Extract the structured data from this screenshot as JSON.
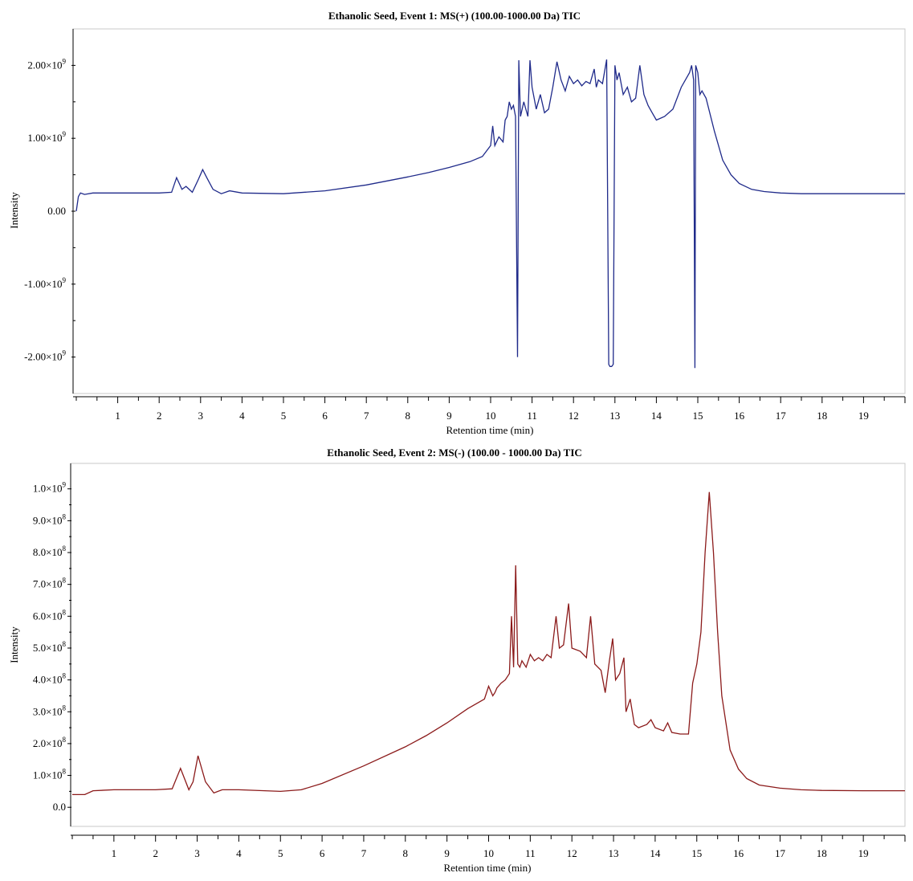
{
  "chart_data": [
    {
      "type": "line",
      "title": "Ethanolic Seed, Event 1: MS(+) (100.00-1000.00 Da) TIC",
      "xlabel": "Retention time (min)",
      "ylabel": "Intensity",
      "xlim": [
        0,
        20
      ],
      "ylim": [
        -2500000000.0,
        2500000000.0
      ],
      "x_ticks": [
        "1",
        "2",
        "3",
        "4",
        "5",
        "6",
        "7",
        "8",
        "9",
        "10",
        "11",
        "12",
        "13",
        "14",
        "15",
        "16",
        "17",
        "18",
        "19"
      ],
      "y_ticks": [
        {
          "value": 2000000000.0,
          "mantissa": "2.00×10",
          "exp": "9"
        },
        {
          "value": 1000000000.0,
          "mantissa": "1.00×10",
          "exp": "9"
        },
        {
          "value": 0,
          "mantissa": "0.00",
          "exp": ""
        },
        {
          "value": -1000000000.0,
          "mantissa": "-1.00×10",
          "exp": "9"
        },
        {
          "value": -2000000000.0,
          "mantissa": "-2.00×10",
          "exp": "9"
        }
      ],
      "color": "#1f2a8a",
      "series": [
        {
          "x": [
            0,
            0.05,
            0.1,
            0.2,
            0.4,
            1,
            2,
            2.3,
            2.42,
            2.55,
            2.65,
            2.8,
            2.95,
            3.05,
            3.15,
            3.3,
            3.5,
            3.7,
            4,
            5,
            6,
            7,
            8,
            8.5,
            9,
            9.5,
            9.8,
            10.0,
            10.05,
            10.1,
            10.2,
            10.3,
            10.35,
            10.4,
            10.45,
            10.5,
            10.55,
            10.6,
            10.65,
            10.68,
            10.72,
            10.8,
            10.9,
            10.95,
            11.0,
            11.1,
            11.2,
            11.3,
            11.4,
            11.5,
            11.6,
            11.7,
            11.8,
            11.9,
            12.0,
            12.1,
            12.2,
            12.3,
            12.4,
            12.5,
            12.55,
            12.6,
            12.7,
            12.8,
            12.85,
            12.88,
            12.92,
            12.96,
            13.0,
            13.05,
            13.1,
            13.2,
            13.3,
            13.4,
            13.5,
            13.6,
            13.7,
            13.8,
            13.9,
            14.0,
            14.2,
            14.4,
            14.6,
            14.8,
            14.85,
            14.9,
            14.93,
            14.95,
            15.0,
            15.05,
            15.1,
            15.2,
            15.4,
            15.6,
            15.8,
            16.0,
            16.3,
            16.6,
            17,
            17.5,
            18,
            19,
            20
          ],
          "y": [
            0,
            200000000.0,
            250000000.0,
            230000000.0,
            250000000.0,
            250000000.0,
            250000000.0,
            260000000.0,
            460000000.0,
            300000000.0,
            340000000.0,
            260000000.0,
            440000000.0,
            570000000.0,
            460000000.0,
            300000000.0,
            240000000.0,
            280000000.0,
            250000000.0,
            240000000.0,
            280000000.0,
            360000000.0,
            470000000.0,
            530000000.0,
            600000000.0,
            680000000.0,
            750000000.0,
            900000000.0,
            1170000000.0,
            900000000.0,
            1020000000.0,
            950000000.0,
            1250000000.0,
            1300000000.0,
            1500000000.0,
            1400000000.0,
            1450000000.0,
            1300000000.0,
            -2000000000.0,
            2070000000.0,
            1300000000.0,
            1500000000.0,
            1300000000.0,
            2070000000.0,
            1700000000.0,
            1400000000.0,
            1600000000.0,
            1350000000.0,
            1400000000.0,
            1700000000.0,
            2050000000.0,
            1800000000.0,
            1650000000.0,
            1850000000.0,
            1750000000.0,
            1800000000.0,
            1720000000.0,
            1780000000.0,
            1750000000.0,
            1950000000.0,
            1700000000.0,
            1800000000.0,
            1750000000.0,
            2080000000.0,
            -2100000000.0,
            -2130000000.0,
            -2130000000.0,
            -2100000000.0,
            2000000000.0,
            1800000000.0,
            1900000000.0,
            1600000000.0,
            1700000000.0,
            1500000000.0,
            1550000000.0,
            2000000000.0,
            1600000000.0,
            1450000000.0,
            1350000000.0,
            1250000000.0,
            1300000000.0,
            1400000000.0,
            1700000000.0,
            1900000000.0,
            2000000000.0,
            1800000000.0,
            -2150000000.0,
            2000000000.0,
            1900000000.0,
            1600000000.0,
            1650000000.0,
            1550000000.0,
            1100000000.0,
            700000000.0,
            500000000.0,
            380000000.0,
            300000000.0,
            270000000.0,
            250000000.0,
            240000000.0,
            240000000.0,
            240000000.0,
            240000000.0
          ]
        }
      ]
    },
    {
      "type": "line",
      "title": "Ethanolic Seed, Event 2: MS(-) (100.00 - 1000.00 Da) TIC",
      "xlabel": "Retention time (min)",
      "ylabel": "Intensity",
      "xlim": [
        0,
        20
      ],
      "ylim": [
        -60000000.0,
        1080000000.0
      ],
      "x_ticks": [
        "1",
        "2",
        "3",
        "4",
        "5",
        "6",
        "7",
        "8",
        "9",
        "10",
        "11",
        "12",
        "13",
        "14",
        "15",
        "16",
        "17",
        "18",
        "19"
      ],
      "y_ticks": [
        {
          "value": 1000000000.0,
          "mantissa": "1.0×10",
          "exp": "9"
        },
        {
          "value": 900000000.0,
          "mantissa": "9.0×10",
          "exp": "8"
        },
        {
          "value": 800000000.0,
          "mantissa": "8.0×10",
          "exp": "8"
        },
        {
          "value": 700000000.0,
          "mantissa": "7.0×10",
          "exp": "8"
        },
        {
          "value": 600000000.0,
          "mantissa": "6.0×10",
          "exp": "8"
        },
        {
          "value": 500000000.0,
          "mantissa": "5.0×10",
          "exp": "8"
        },
        {
          "value": 400000000.0,
          "mantissa": "4.0×10",
          "exp": "8"
        },
        {
          "value": 300000000.0,
          "mantissa": "3.0×10",
          "exp": "8"
        },
        {
          "value": 200000000.0,
          "mantissa": "2.0×10",
          "exp": "8"
        },
        {
          "value": 100000000.0,
          "mantissa": "1.0×10",
          "exp": "8"
        },
        {
          "value": 0,
          "mantissa": "0.0",
          "exp": ""
        }
      ],
      "color": "#8b1a1a",
      "series": [
        {
          "x": [
            0,
            0.3,
            0.5,
            1,
            2,
            2.4,
            2.6,
            2.8,
            2.9,
            3.02,
            3.2,
            3.4,
            3.6,
            4,
            5,
            5.5,
            6,
            7,
            8,
            8.5,
            9,
            9.5,
            9.9,
            10.0,
            10.1,
            10.15,
            10.2,
            10.3,
            10.4,
            10.5,
            10.55,
            10.6,
            10.65,
            10.7,
            10.75,
            10.8,
            10.9,
            11.0,
            11.1,
            11.2,
            11.3,
            11.4,
            11.5,
            11.62,
            11.7,
            11.8,
            11.92,
            12.0,
            12.2,
            12.35,
            12.45,
            12.55,
            12.7,
            12.8,
            12.9,
            12.98,
            13.05,
            13.15,
            13.25,
            13.3,
            13.4,
            13.5,
            13.6,
            13.8,
            13.9,
            14.0,
            14.2,
            14.3,
            14.4,
            14.6,
            14.8,
            14.9,
            15.0,
            15.1,
            15.2,
            15.3,
            15.4,
            15.5,
            15.6,
            15.8,
            16.0,
            16.2,
            16.5,
            17,
            17.5,
            18,
            19,
            20
          ],
          "y": [
            40000000.0,
            40000000.0,
            52000000.0,
            55000000.0,
            55000000.0,
            58000000.0,
            122000000.0,
            55000000.0,
            80000000.0,
            162000000.0,
            80000000.0,
            45000000.0,
            55000000.0,
            55000000.0,
            50000000.0,
            55000000.0,
            75000000.0,
            130000000.0,
            190000000.0,
            225000000.0,
            265000000.0,
            310000000.0,
            340000000.0,
            380000000.0,
            350000000.0,
            360000000.0,
            375000000.0,
            390000000.0,
            400000000.0,
            420000000.0,
            600000000.0,
            440000000.0,
            760000000.0,
            450000000.0,
            440000000.0,
            460000000.0,
            440000000.0,
            480000000.0,
            460000000.0,
            470000000.0,
            460000000.0,
            480000000.0,
            470000000.0,
            600000000.0,
            500000000.0,
            510000000.0,
            640000000.0,
            500000000.0,
            490000000.0,
            470000000.0,
            600000000.0,
            450000000.0,
            430000000.0,
            360000000.0,
            460000000.0,
            530000000.0,
            400000000.0,
            420000000.0,
            470000000.0,
            300000000.0,
            340000000.0,
            260000000.0,
            250000000.0,
            260000000.0,
            275000000.0,
            250000000.0,
            240000000.0,
            265000000.0,
            235000000.0,
            230000000.0,
            230000000.0,
            390000000.0,
            450000000.0,
            550000000.0,
            800000000.0,
            990000000.0,
            800000000.0,
            550000000.0,
            350000000.0,
            180000000.0,
            120000000.0,
            90000000.0,
            70000000.0,
            60000000.0,
            55000000.0,
            53000000.0,
            52000000.0,
            52000000.0
          ]
        }
      ]
    }
  ]
}
